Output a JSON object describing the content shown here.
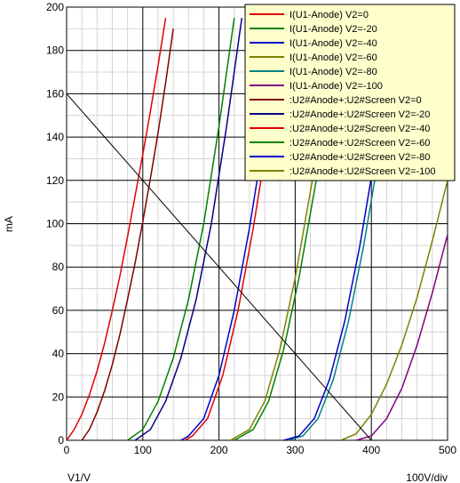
{
  "chart_data": {
    "type": "line",
    "xlabel": "V1/V",
    "ylabel": "mA",
    "xscale_label": "100V/div",
    "xlim": [
      0,
      500
    ],
    "ylim": [
      0,
      200
    ],
    "xticks": [
      0,
      100,
      200,
      300,
      400,
      500
    ],
    "yticks": [
      0,
      20,
      40,
      60,
      80,
      100,
      120,
      140,
      160,
      180,
      200
    ],
    "grid": true,
    "legend_position": "top-right",
    "series": [
      {
        "name": "I(U1-Anode) V2=0",
        "color": "#e00000",
        "x": [
          0,
          10,
          20,
          30,
          40,
          50,
          60,
          70,
          80,
          90,
          100,
          110,
          120,
          130
        ],
        "y": [
          0,
          5,
          12,
          21,
          32,
          45,
          60,
          76,
          94,
          113,
          132,
          152,
          173,
          195
        ]
      },
      {
        "name": "I(U1-Anode) V2=-20",
        "color": "#008000",
        "x": [
          80,
          100,
          120,
          140,
          160,
          180,
          200,
          220
        ],
        "y": [
          0,
          5,
          18,
          38,
          65,
          100,
          145,
          195
        ]
      },
      {
        "name": "I(U1-Anode) V2=-40",
        "color": "#0000cc",
        "x": [
          150,
          160,
          180,
          200,
          220,
          240,
          260,
          280
        ],
        "y": [
          0,
          2,
          10,
          30,
          60,
          98,
          142,
          195
        ]
      },
      {
        "name": "I(U1-Anode) V2=-60",
        "color": "#808000",
        "x": [
          215,
          240,
          260,
          280,
          300,
          320,
          340,
          360
        ],
        "y": [
          0,
          5,
          18,
          42,
          75,
          115,
          155,
          195
        ]
      },
      {
        "name": "I(U1-Anode) V2=-80",
        "color": "#008080",
        "x": [
          290,
          310,
          330,
          350,
          370,
          390,
          410,
          430
        ],
        "y": [
          0,
          2,
          10,
          28,
          55,
          90,
          132,
          180
        ]
      },
      {
        "name": "I(U1-Anode) V2=-100",
        "color": "#800080",
        "x": [
          380,
          400,
          420,
          440,
          460,
          480,
          500
        ],
        "y": [
          0,
          2,
          10,
          24,
          44,
          68,
          95
        ]
      },
      {
        "name": ":U2#Anode+:U2#Screen V2=0",
        "color": "#800000",
        "x": [
          20,
          30,
          40,
          50,
          60,
          70,
          80,
          90,
          100,
          110,
          120,
          130,
          140
        ],
        "y": [
          0,
          5,
          13,
          23,
          35,
          49,
          65,
          82,
          101,
          121,
          142,
          165,
          190
        ]
      },
      {
        "name": ":U2#Anode+:U2#Screen V2=-20",
        "color": "#000080",
        "x": [
          90,
          110,
          130,
          150,
          170,
          190,
          210,
          230
        ],
        "y": [
          0,
          5,
          18,
          38,
          65,
          100,
          145,
          195
        ]
      },
      {
        "name": ":U2#Anode+:U2#Screen V2=-40",
        "color": "#e00000",
        "x": [
          155,
          165,
          185,
          205,
          225,
          245,
          265,
          285
        ],
        "y": [
          0,
          2,
          10,
          30,
          60,
          98,
          142,
          195
        ]
      },
      {
        "name": ":U2#Anode+:U2#Screen V2=-60",
        "color": "#008000",
        "x": [
          220,
          245,
          265,
          285,
          305,
          325,
          345,
          365
        ],
        "y": [
          0,
          5,
          18,
          42,
          75,
          115,
          155,
          195
        ]
      },
      {
        "name": ":U2#Anode+:U2#Screen V2=-80",
        "color": "#0000cc",
        "x": [
          285,
          305,
          325,
          345,
          365,
          385,
          405,
          425
        ],
        "y": [
          0,
          2,
          10,
          28,
          55,
          90,
          132,
          180
        ]
      },
      {
        "name": ":U2#Anode+:U2#Screen V2=-100",
        "color": "#808000",
        "x": [
          360,
          380,
          400,
          420,
          440,
          460,
          480,
          500
        ],
        "y": [
          0,
          3,
          12,
          26,
          44,
          66,
          92,
          120
        ]
      }
    ],
    "annotations": [
      {
        "type": "load-line",
        "color": "#000000",
        "x": [
          0,
          400
        ],
        "y": [
          160,
          0
        ]
      }
    ]
  }
}
